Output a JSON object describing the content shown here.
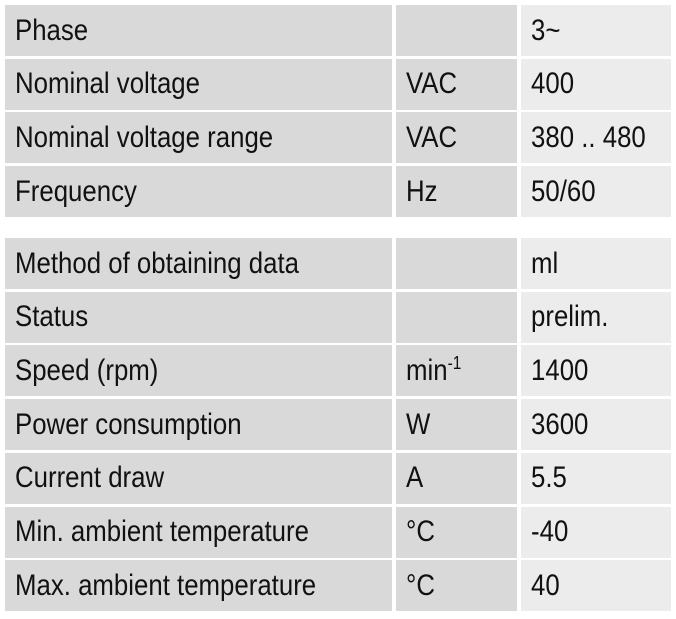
{
  "table": {
    "groups": [
      {
        "rows": [
          {
            "label": "Phase",
            "value": "3~"
          },
          {
            "label": "Nominal voltage",
            "unit": "VAC",
            "value": "400"
          },
          {
            "label": "Nominal voltage range",
            "unit": "VAC",
            "value": "380 .. 480"
          },
          {
            "label": "Frequency",
            "unit": "Hz",
            "value": "50/60"
          }
        ]
      },
      {
        "rows": [
          {
            "label": "Method of obtaining data",
            "value": "ml"
          },
          {
            "label": "Status",
            "value": "prelim."
          },
          {
            "label": "Speed (rpm)",
            "unit": "min",
            "unit_sup": "-1",
            "value": "1400"
          },
          {
            "label": "Power consumption",
            "unit": "W",
            "value": "3600"
          },
          {
            "label": "Current draw",
            "unit": "A",
            "value": "5.5"
          },
          {
            "label": "Min. ambient temperature",
            "unit": "°C",
            "value": "-40"
          },
          {
            "label": "Max. ambient temperature",
            "unit": "°C",
            "value": "40"
          }
        ]
      }
    ]
  }
}
